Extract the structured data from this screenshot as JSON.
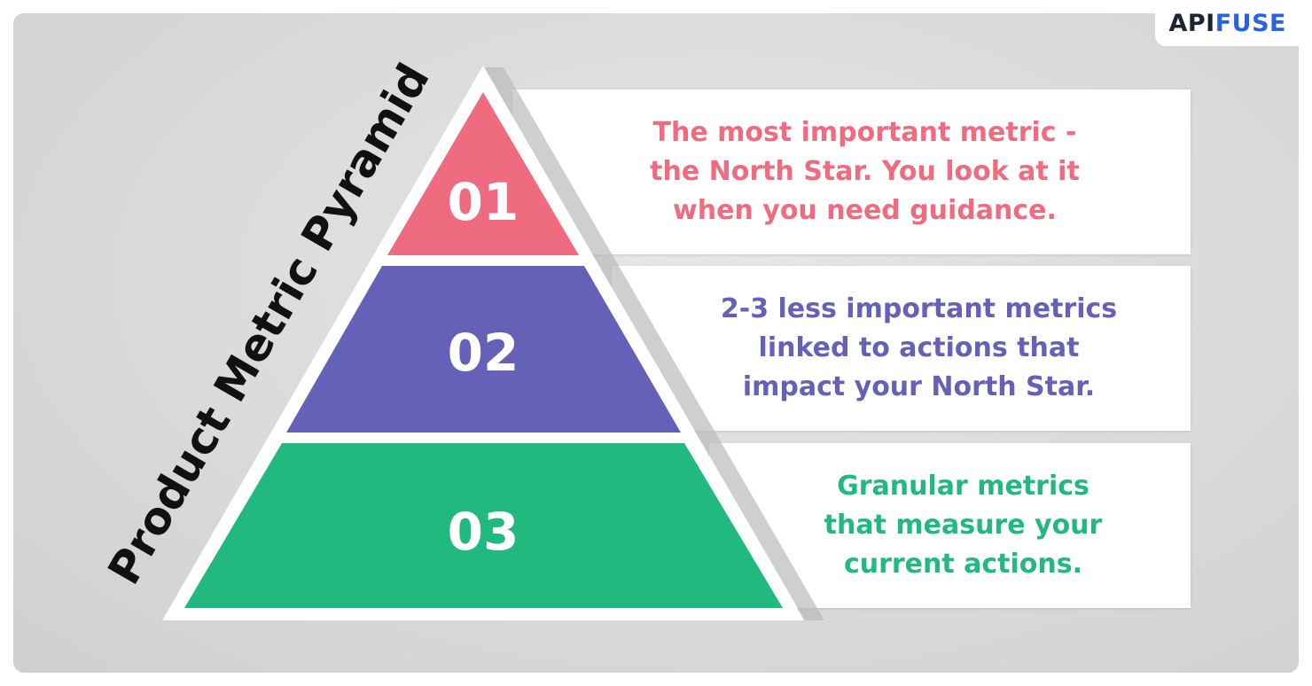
{
  "brand": {
    "part1": "API",
    "part2": "FUSE"
  },
  "title": "Product Metric Pyramid",
  "tiers": [
    {
      "number": "01",
      "color": "#ef6b80",
      "lines": [
        "The most important metric -",
        "the North Star. You look at it",
        "when you need guidance."
      ]
    },
    {
      "number": "02",
      "color": "#6560b8",
      "lines": [
        "2-3 less important metrics",
        "linked to actions that",
        "impact your North Star."
      ]
    },
    {
      "number": "03",
      "color": "#22b980",
      "lines": [
        "Granular metrics",
        "that measure your",
        "current actions."
      ]
    }
  ]
}
